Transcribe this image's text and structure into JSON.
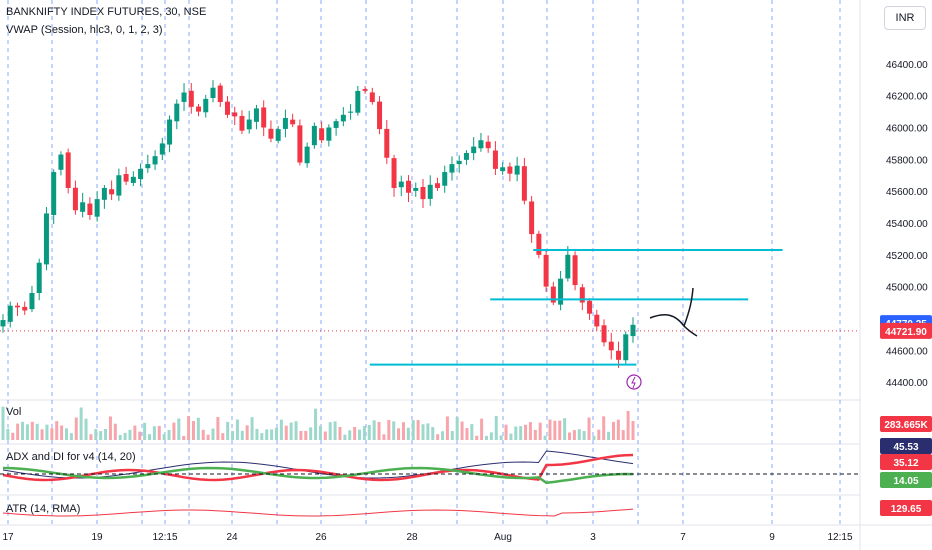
{
  "header": {
    "title": "BANKNIFTY INDEX FUTURES, 30, NSE",
    "indicator": "VWAP (Session, hlc3, 0, 1, 2, 3)",
    "currency": "INR"
  },
  "chart_data": [
    {
      "type": "candlestick",
      "title": "BANKNIFTY INDEX FUTURES, 30, NSE",
      "ylim": [
        44300,
        46550
      ],
      "y_ticks": [
        "46400.00",
        "46200.00",
        "46000.00",
        "45800.00",
        "45600.00",
        "45400.00",
        "45200.00",
        "45000.00",
        "44800.00",
        "44600.00",
        "44400.00"
      ],
      "x_tick_labels": [
        "17",
        "19",
        "12:15",
        "24",
        "26",
        "28",
        "Aug",
        "3",
        "7",
        "9",
        "12:15"
      ],
      "colors": {
        "up": "#089981",
        "down": "#f23645",
        "horizontal": "#00bcd4",
        "vline": "#2962ff"
      },
      "close_series": [
        44790,
        44880,
        44870,
        44850,
        44960,
        45150,
        45460,
        45720,
        45830,
        45620,
        45480,
        45530,
        45450,
        45550,
        45620,
        45580,
        45700,
        45660,
        45690,
        45740,
        45770,
        45820,
        45900,
        46050,
        46150,
        46220,
        46130,
        46100,
        46180,
        46250,
        46160,
        46080,
        46070,
        45980,
        46050,
        46120,
        46000,
        45930,
        45990,
        46060,
        46020,
        45780,
        45880,
        46010,
        45920,
        46000,
        46040,
        46080,
        46100,
        46230,
        46230,
        46160,
        45990,
        45810,
        45620,
        45660,
        45590,
        45620,
        45550,
        45640,
        45620,
        45720,
        45770,
        45790,
        45840,
        45880,
        45920,
        45870,
        45740,
        45750,
        45710,
        45760,
        45540,
        45330,
        45200,
        45000,
        44900,
        45050,
        45200,
        45010,
        44900,
        44830,
        44750,
        44650,
        44600,
        44540,
        44700,
        44760
      ],
      "current_price": "44770.25",
      "last_price": "44721.90",
      "horizontal_levels": [
        {
          "price": 45230,
          "from": 0.62,
          "to": 0.91
        },
        {
          "price": 44920,
          "from": 0.57,
          "to": 0.87
        },
        {
          "price": 44510,
          "from": 0.43,
          "to": 0.74
        }
      ]
    },
    {
      "type": "bar",
      "title": "Vol",
      "last_value": "283.665K"
    },
    {
      "type": "line",
      "title": "ADX and DI for v4 (14, 20)",
      "series": [
        {
          "name": "ADX",
          "color": "#2a2e6f",
          "last": "45.53"
        },
        {
          "name": "+DI",
          "color": "#f23645",
          "last": "35.12"
        },
        {
          "name": "-DI",
          "color": "#4caf50",
          "last": "14.05"
        }
      ]
    },
    {
      "type": "line",
      "title": "ATR (14, RMA)",
      "series": [
        {
          "name": "ATR",
          "color": "#f23645",
          "last": "129.65"
        }
      ]
    }
  ]
}
